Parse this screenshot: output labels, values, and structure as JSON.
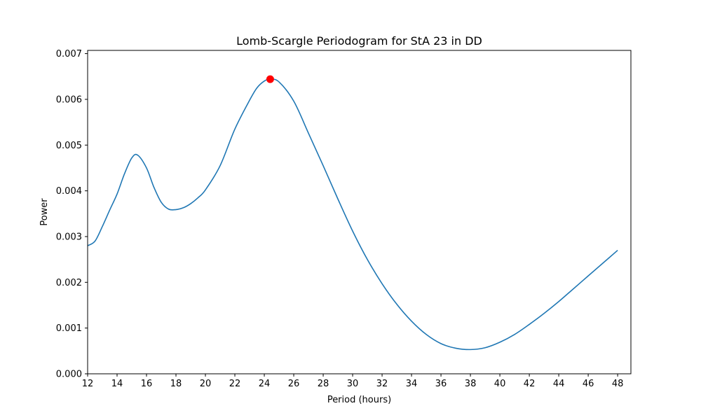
{
  "chart_data": {
    "type": "line",
    "title": "Lomb-Scargle Periodogram for StA 23 in DD",
    "xlabel": "Period (hours)",
    "ylabel": "Power",
    "xlim": [
      12,
      48.9
    ],
    "ylim": [
      0,
      0.00707
    ],
    "grid": false,
    "x_ticks": [
      12,
      14,
      16,
      18,
      20,
      22,
      24,
      26,
      28,
      30,
      32,
      34,
      36,
      38,
      40,
      42,
      44,
      46,
      48
    ],
    "y_ticks": [
      0,
      0.001,
      0.002,
      0.003,
      0.004,
      0.005,
      0.006,
      0.007
    ],
    "y_tick_labels": [
      "0.000",
      "0.001",
      "0.002",
      "0.003",
      "0.004",
      "0.005",
      "0.006",
      "0.007"
    ],
    "series": [
      {
        "color": "#1f77b4",
        "points": [
          [
            12.0,
            0.0028
          ],
          [
            12.5,
            0.0029
          ],
          [
            13.0,
            0.00322
          ],
          [
            13.5,
            0.00358
          ],
          [
            14.0,
            0.00393
          ],
          [
            14.5,
            0.00437
          ],
          [
            15.0,
            0.00472
          ],
          [
            15.4,
            0.00478
          ],
          [
            16.0,
            0.0045
          ],
          [
            16.5,
            0.00408
          ],
          [
            17.0,
            0.00375
          ],
          [
            17.5,
            0.0036
          ],
          [
            18.0,
            0.00359
          ],
          [
            18.5,
            0.00363
          ],
          [
            19.0,
            0.00372
          ],
          [
            19.5,
            0.00385
          ],
          [
            20.0,
            0.00402
          ],
          [
            21.0,
            0.00455
          ],
          [
            22.0,
            0.00535
          ],
          [
            23.0,
            0.00598
          ],
          [
            23.5,
            0.00625
          ],
          [
            24.0,
            0.0064
          ],
          [
            24.4,
            0.00644
          ],
          [
            25.0,
            0.00638
          ],
          [
            26.0,
            0.00596
          ],
          [
            27.0,
            0.00526
          ],
          [
            28.0,
            0.00455
          ],
          [
            29.0,
            0.00382
          ],
          [
            30.0,
            0.00312
          ],
          [
            31.0,
            0.0025
          ],
          [
            32.0,
            0.00197
          ],
          [
            33.0,
            0.00152
          ],
          [
            34.0,
            0.00115
          ],
          [
            35.0,
            0.00086
          ],
          [
            36.0,
            0.00066
          ],
          [
            37.0,
            0.00056
          ],
          [
            38.0,
            0.00053
          ],
          [
            39.0,
            0.00057
          ],
          [
            40.0,
            0.00069
          ],
          [
            41.0,
            0.00086
          ],
          [
            42.0,
            0.00108
          ],
          [
            43.0,
            0.00132
          ],
          [
            44.0,
            0.00158
          ],
          [
            45.0,
            0.00186
          ],
          [
            46.0,
            0.00214
          ],
          [
            47.0,
            0.00242
          ],
          [
            48.0,
            0.0027
          ]
        ]
      }
    ],
    "peak_marker": {
      "x": 24.4,
      "y": 0.00644,
      "color": "#ff0000"
    }
  }
}
